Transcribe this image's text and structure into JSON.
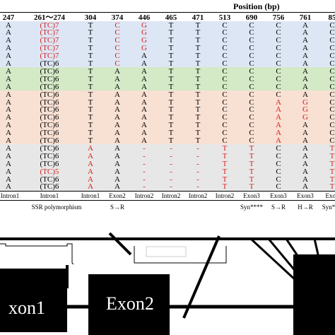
{
  "header": {
    "title": "Position (bp)"
  },
  "columns": [
    "247",
    "261～274",
    "304",
    "374",
    "446",
    "465",
    "471",
    "513",
    "690",
    "756",
    "761",
    "85"
  ],
  "bands": [
    {
      "group": "blue",
      "color": "#dde6f4",
      "rows": 6
    },
    {
      "group": "green",
      "color": "#d4e9c6",
      "rows": 3
    },
    {
      "group": "peach",
      "color": "#f8e0d3",
      "rows": 7
    },
    {
      "group": "gray",
      "color": "#e7e7e7",
      "rows": 6
    }
  ],
  "rows": [
    [
      "A",
      "(TC)7",
      "T",
      "C",
      "G",
      "T",
      "T",
      "C",
      "C",
      "C",
      "A",
      "C"
    ],
    [
      "A",
      "(TC)7",
      "T",
      "C",
      "G",
      "T",
      "T",
      "C",
      "C",
      "C",
      "A",
      "C"
    ],
    [
      "A",
      "(TC)7",
      "T",
      "C",
      "G",
      "T",
      "T",
      "C",
      "C",
      "C",
      "A",
      "C"
    ],
    [
      "A",
      "(TC)7",
      "T",
      "C",
      "G",
      "T",
      "T",
      "C",
      "C",
      "C",
      "A",
      "C"
    ],
    [
      "A",
      "(TC)7",
      "T",
      "C",
      "A",
      "T",
      "T",
      "C",
      "C",
      "C",
      "A",
      "C"
    ],
    [
      "A",
      "(TC)6",
      "T",
      "C",
      "A",
      "T",
      "T",
      "C",
      "C",
      "C",
      "A",
      "C"
    ],
    [
      "A",
      "(TC)6",
      "T",
      "A",
      "A",
      "T",
      "T",
      "C",
      "C",
      "C",
      "A",
      "C"
    ],
    [
      "A",
      "(TC)6",
      "T",
      "A",
      "A",
      "T",
      "T",
      "C",
      "C",
      "C",
      "A",
      "C"
    ],
    [
      "A",
      "(TC)6",
      "T",
      "A",
      "A",
      "T",
      "T",
      "C",
      "C",
      "C",
      "A",
      "C"
    ],
    [
      "A",
      "(TC)6",
      "T",
      "A",
      "A",
      "T",
      "T",
      "C",
      "C",
      "C",
      "A",
      "C"
    ],
    [
      "A",
      "(TC)6",
      "T",
      "A",
      "A",
      "T",
      "T",
      "C",
      "C",
      "A",
      "G",
      "C"
    ],
    [
      "A",
      "(TC)6",
      "T",
      "A",
      "A",
      "T",
      "T",
      "C",
      "C",
      "A",
      "G",
      "C"
    ],
    [
      "A",
      "(TC)6",
      "T",
      "A",
      "A",
      "T",
      "T",
      "C",
      "C",
      "A",
      "G",
      "C"
    ],
    [
      "A",
      "(TC)6",
      "T",
      "A",
      "A",
      "T",
      "T",
      "C",
      "C",
      "A",
      "A",
      "C"
    ],
    [
      "A",
      "(TC)6",
      "T",
      "A",
      "A",
      "T",
      "T",
      "C",
      "C",
      "A",
      "A",
      "C"
    ],
    [
      "A",
      "(TC)6",
      "T",
      "A",
      "A",
      "T",
      "T",
      "C",
      "C",
      "A",
      "A",
      "C"
    ],
    [
      "A",
      "(TC)6",
      "A",
      "A",
      "-",
      "-",
      "-",
      "T",
      "T",
      "C",
      "A",
      "T"
    ],
    [
      "A",
      "(TC)6",
      "A",
      "A",
      "-",
      "-",
      "-",
      "T",
      "T",
      "C",
      "A",
      "T"
    ],
    [
      "A",
      "(TC)6",
      "A",
      "A",
      "-",
      "-",
      "-",
      "T",
      "T",
      "C",
      "A",
      "T"
    ],
    [
      "A",
      "(TC)5",
      "A",
      "A",
      "-",
      "-",
      "-",
      "T",
      "T",
      "C",
      "A",
      "T"
    ],
    [
      "A",
      "(TC)6",
      "A",
      "A",
      "-",
      "-",
      "-",
      "T",
      "T",
      "C",
      "A",
      "T"
    ],
    [
      "A",
      "(TC)6",
      "A",
      "A",
      "-",
      "-",
      "-",
      "T",
      "T",
      "C",
      "A",
      "T"
    ]
  ],
  "highlights": [
    [
      0,
      1
    ],
    [
      1,
      1
    ],
    [
      2,
      1
    ],
    [
      3,
      1
    ],
    [
      4,
      1
    ],
    [
      0,
      3
    ],
    [
      1,
      3
    ],
    [
      2,
      3
    ],
    [
      3,
      3
    ],
    [
      4,
      3
    ],
    [
      5,
      3
    ],
    [
      0,
      4
    ],
    [
      1,
      4
    ],
    [
      2,
      4
    ],
    [
      3,
      4
    ],
    [
      10,
      9
    ],
    [
      11,
      9
    ],
    [
      12,
      9
    ],
    [
      13,
      9
    ],
    [
      14,
      9
    ],
    [
      15,
      9
    ],
    [
      10,
      10
    ],
    [
      11,
      10
    ],
    [
      12,
      10
    ],
    [
      16,
      2
    ],
    [
      17,
      2
    ],
    [
      18,
      2
    ],
    [
      19,
      2
    ],
    [
      20,
      2
    ],
    [
      21,
      2
    ],
    [
      16,
      4
    ],
    [
      17,
      4
    ],
    [
      18,
      4
    ],
    [
      19,
      4
    ],
    [
      20,
      4
    ],
    [
      21,
      4
    ],
    [
      16,
      5
    ],
    [
      17,
      5
    ],
    [
      18,
      5
    ],
    [
      19,
      5
    ],
    [
      20,
      5
    ],
    [
      21,
      5
    ],
    [
      16,
      6
    ],
    [
      17,
      6
    ],
    [
      18,
      6
    ],
    [
      19,
      6
    ],
    [
      20,
      6
    ],
    [
      21,
      6
    ],
    [
      16,
      7
    ],
    [
      17,
      7
    ],
    [
      18,
      7
    ],
    [
      19,
      7
    ],
    [
      20,
      7
    ],
    [
      21,
      7
    ],
    [
      16,
      8
    ],
    [
      17,
      8
    ],
    [
      18,
      8
    ],
    [
      19,
      8
    ],
    [
      20,
      8
    ],
    [
      21,
      8
    ],
    [
      16,
      11
    ],
    [
      17,
      11
    ],
    [
      18,
      11
    ],
    [
      19,
      11
    ],
    [
      20,
      11
    ],
    [
      21,
      11
    ],
    [
      19,
      1
    ]
  ],
  "regions": [
    "Intron1",
    "Intron1",
    "Intron1",
    "Exon2",
    "Intron2",
    "Intron2",
    "Intron2",
    "Intron2",
    "Exon3",
    "Exon3",
    "Exon3",
    "Exon"
  ],
  "annotations": {
    "ssr": "SSR polymorphism",
    "exon2_change": "S→R",
    "syn_exon3": "Syn****",
    "s_r_exon3": "S→R",
    "h_r": "H→R",
    "syn_last": "Syn*"
  },
  "gene_model": {
    "exon1_label": "xon1",
    "exon2_label": "Exon2"
  },
  "colors": {
    "highlight": "#d42020",
    "exon_fill": "#000000"
  }
}
